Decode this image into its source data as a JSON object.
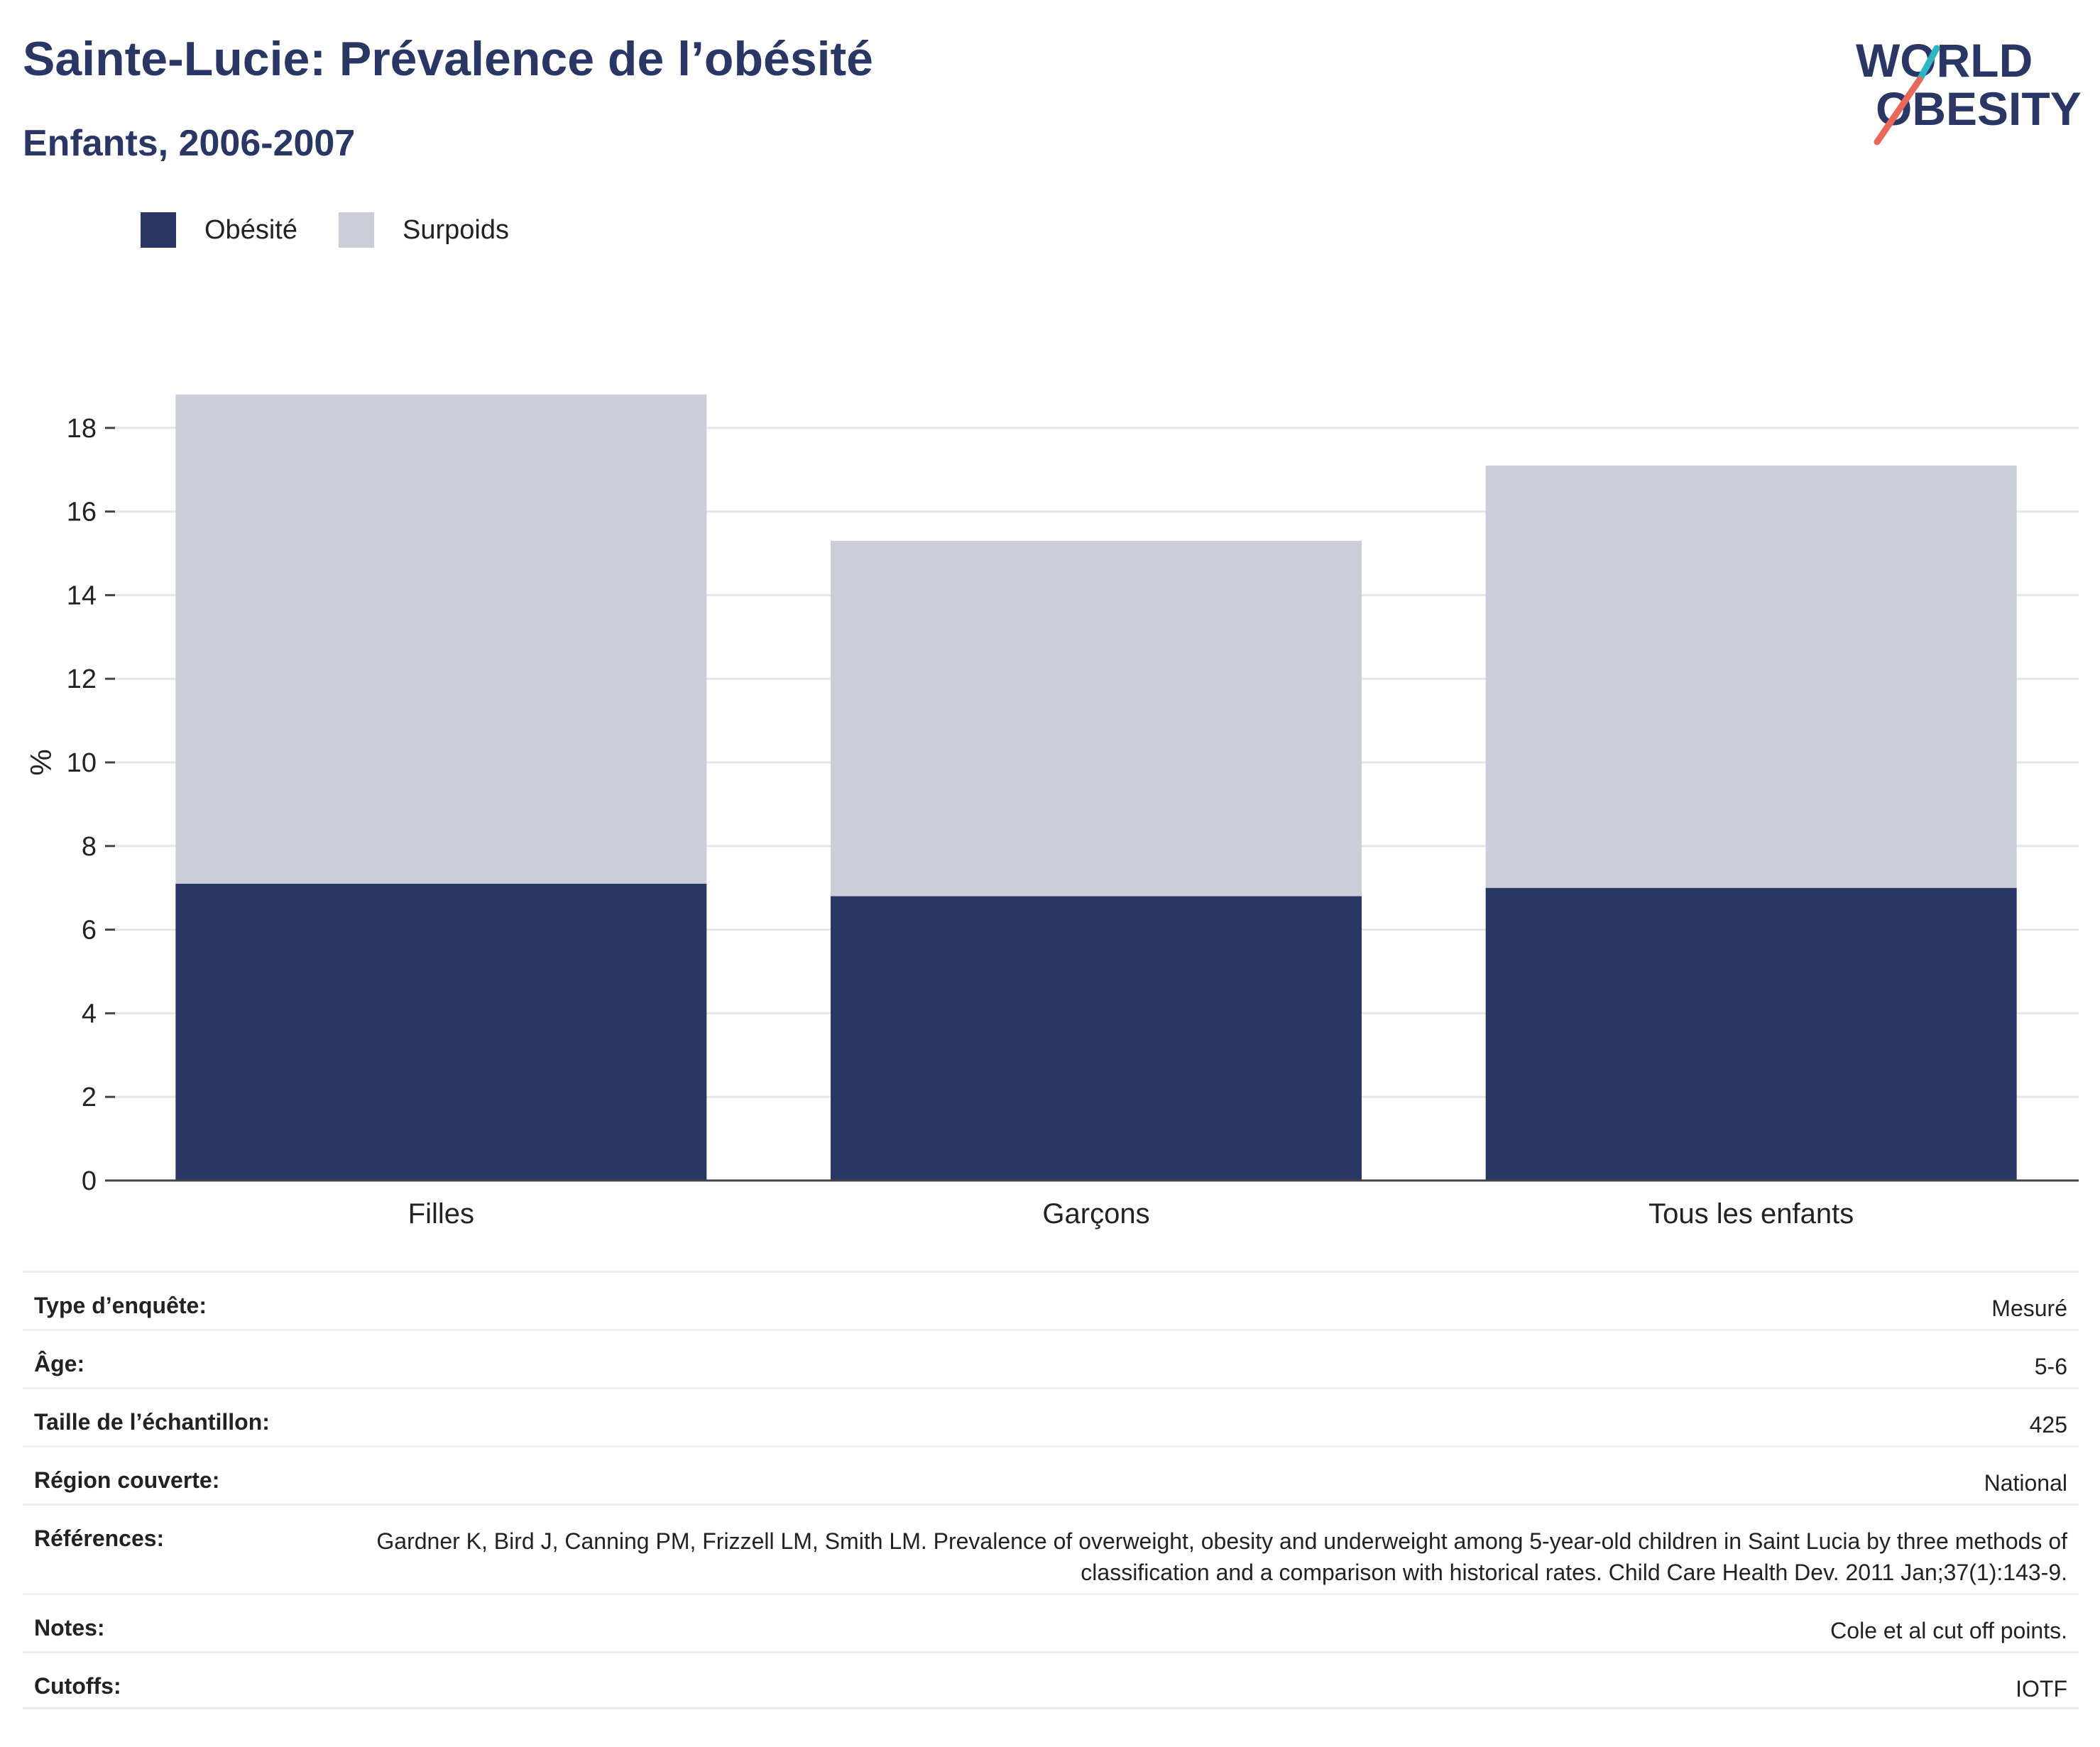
{
  "header": {
    "title": "Sainte-Lucie: Prévalence de l’obésité",
    "subtitle": "Enfants, 2006-2007"
  },
  "logo": {
    "line1": "WORLD",
    "line2": "OBESITY"
  },
  "colors": {
    "obesity": "#2a3663",
    "overweight": "#cbcdd8",
    "text": "#2a3663",
    "grid": "#e6e6e6",
    "axis": "#444444"
  },
  "chart_data": {
    "type": "bar",
    "stacked": true,
    "categories": [
      "Filles",
      "Garçons",
      "Tous les enfants"
    ],
    "series": [
      {
        "name": "Obésité",
        "values": [
          7.1,
          6.8,
          7.0
        ]
      },
      {
        "name": "Surpoids",
        "values": [
          11.7,
          8.5,
          10.1
        ]
      }
    ],
    "ylabel": "%",
    "xlabel": "",
    "ylim": [
      0,
      19
    ],
    "yticks": [
      0,
      2,
      4,
      6,
      8,
      10,
      12,
      14,
      16,
      18
    ],
    "grid": true,
    "legend": "top-left"
  },
  "info": [
    {
      "key": "Type d’enquête:",
      "value": "Mesuré"
    },
    {
      "key": "Âge:",
      "value": "5-6"
    },
    {
      "key": "Taille de l’échantillon:",
      "value": "425"
    },
    {
      "key": "Région couverte:",
      "value": "National"
    },
    {
      "key": "Références:",
      "value": "Gardner K, Bird J, Canning PM, Frizzell LM, Smith LM. Prevalence of overweight, obesity and underweight among 5-year-old children in Saint Lucia by three methods of classification and a comparison with historical rates. Child Care Health Dev. 2011 Jan;37(1):143-9."
    },
    {
      "key": "Notes:",
      "value": "Cole et al cut off points."
    },
    {
      "key": "Cutoffs:",
      "value": "IOTF"
    }
  ]
}
